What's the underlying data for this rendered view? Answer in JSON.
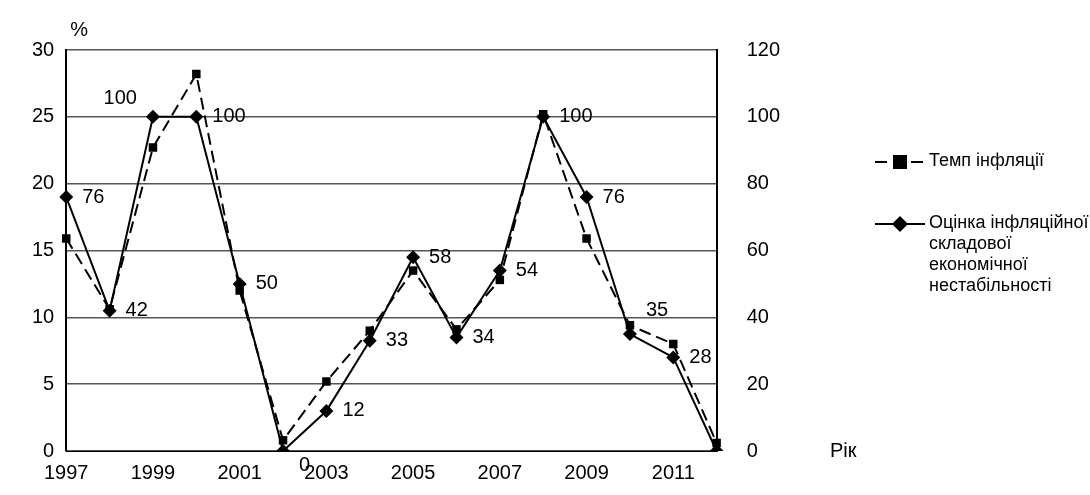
{
  "chart_data": {
    "type": "line",
    "ylabel": "%",
    "xlabel": "Рік",
    "categories": [
      "1997",
      null,
      "1999",
      null,
      "2001",
      null,
      "2003",
      null,
      "2005",
      null,
      "2007",
      null,
      "2009",
      null,
      "2011",
      null
    ],
    "series": [
      {
        "name": "Темп інфляції",
        "color": "#000000",
        "marker": "square",
        "line_style": "dashed",
        "values": [
          15.9,
          10.6,
          22.7,
          28.2,
          12.0,
          0.8,
          5.2,
          9.0,
          13.5,
          9.1,
          12.8,
          25.2,
          15.9,
          9.4,
          8.0,
          0.6
        ]
      },
      {
        "name": "Оцінка інфляційної складової економічної нестабільності",
        "color": "#000000",
        "marker": "diamond",
        "line_style": "solid",
        "axis": "y2",
        "values": [
          76,
          42,
          100,
          100,
          50,
          0,
          12,
          33,
          58,
          34,
          54,
          100,
          76,
          35,
          28,
          0
        ],
        "value_labels": [
          "76",
          "42",
          "100",
          "100",
          "50",
          "0",
          "12",
          "33",
          "58",
          "34",
          "54",
          "100",
          "76",
          "35",
          "28",
          null
        ]
      }
    ],
    "ylim": [
      0,
      30
    ],
    "yticks": [
      0,
      5,
      10,
      15,
      20,
      25,
      30
    ],
    "y2lim": [
      0,
      120
    ],
    "y2ticks": [
      0,
      20,
      40,
      60,
      80,
      100,
      120
    ],
    "grid": "y",
    "legend": "right"
  }
}
